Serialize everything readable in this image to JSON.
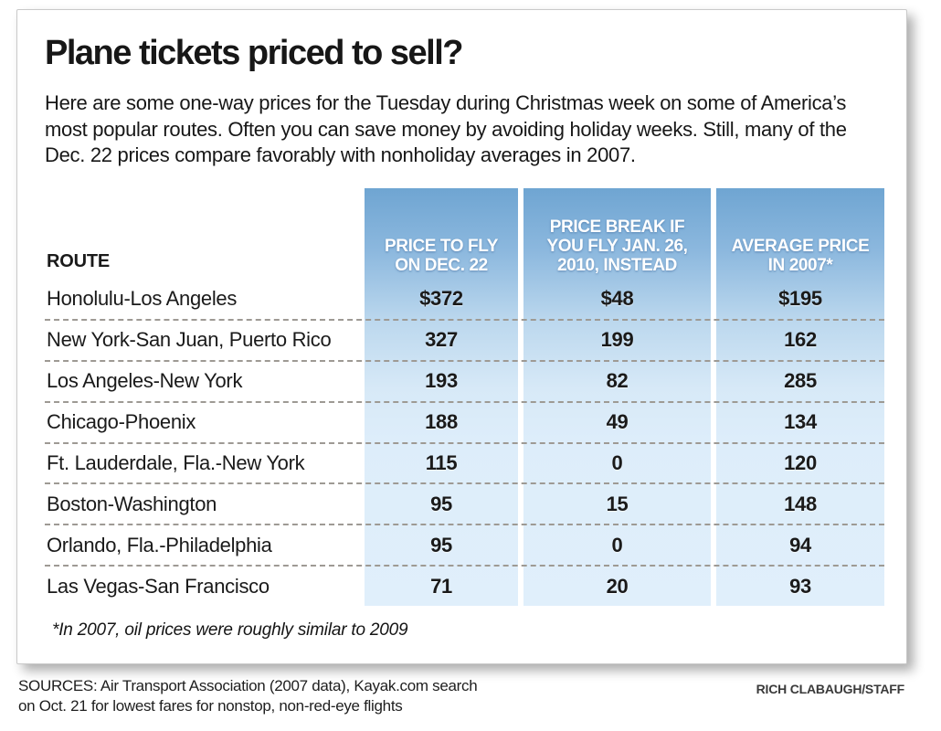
{
  "panel": {
    "title": "Plane tickets priced to sell?",
    "intro": "Here are some one-way prices for the Tuesday during Christmas week on some of America’s most popular routes. Often you can save money by avoiding holiday weeks. Still, many of the Dec. 22 prices compare favorably with nonholiday averages in 2007.",
    "footnote": "*In 2007, oil prices were roughly similar to 2009"
  },
  "table": {
    "route_header": "ROUTE",
    "column_headers_display": [
      "PRICE TO FLY\nON DEC. 22",
      "PRICE BREAK IF\nYOU FLY JAN. 26,\n2010, INSTEAD",
      "AVERAGE PRICE\nIN 2007*"
    ],
    "rows": [
      [
        "Honolulu-Los Angeles",
        "$372",
        "$48",
        "$195"
      ],
      [
        "New York-San Juan, Puerto Rico",
        "327",
        "199",
        "162"
      ],
      [
        "Los Angeles-New York",
        "193",
        "82",
        "285"
      ],
      [
        "Chicago-Phoenix",
        "188",
        "49",
        "134"
      ],
      [
        "Ft. Lauderdale, Fla.-New York",
        "115",
        "0",
        "120"
      ],
      [
        "Boston-Washington",
        "95",
        "15",
        "148"
      ],
      [
        "Orlando, Fla.-Philadelphia",
        "95",
        "0",
        "94"
      ],
      [
        "Las Vegas-San Francisco",
        "71",
        "20",
        "93"
      ]
    ]
  },
  "footer": {
    "sources": "SOURCES: Air Transport Association (2007 data), Kayak.com search\non Oct. 21 for lowest fares for nonstop, non-red-eye flights",
    "credit": "RICH CLABAUGH/STAFF"
  },
  "colors": {
    "header_blue_top": "#6fa5d2",
    "column_blue_light": "#ddedfa",
    "dashed_line": "#9e9a94",
    "header_text": "#ffffff",
    "body_text": "#1a1a1a"
  },
  "chart_data": {
    "type": "table",
    "title": "Plane tickets priced to sell?",
    "columns": [
      "Route",
      "Price to fly on Dec. 22",
      "Price break if you fly Jan. 26, 2010, instead",
      "Average price in 2007*"
    ],
    "rows": [
      [
        "Honolulu-Los Angeles",
        372,
        48,
        195
      ],
      [
        "New York-San Juan, Puerto Rico",
        327,
        199,
        162
      ],
      [
        "Los Angeles-New York",
        193,
        82,
        285
      ],
      [
        "Chicago-Phoenix",
        188,
        49,
        134
      ],
      [
        "Ft. Lauderdale, Fla.-New York",
        115,
        0,
        120
      ],
      [
        "Boston-Washington",
        95,
        15,
        148
      ],
      [
        "Orlando, Fla.-Philadelphia",
        95,
        0,
        94
      ],
      [
        "Las Vegas-San Francisco",
        71,
        20,
        93
      ]
    ],
    "units": "USD, one-way fares",
    "footnote": "*In 2007, oil prices were roughly similar to 2009"
  }
}
